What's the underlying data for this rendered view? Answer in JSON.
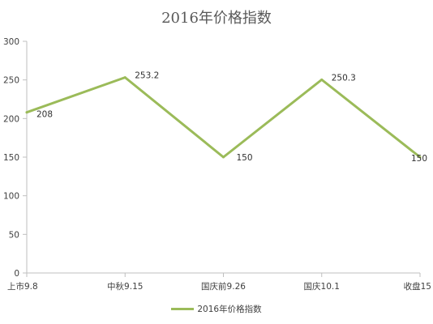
{
  "chart_data": {
    "type": "line",
    "title": "2016年价格指数",
    "categories": [
      "上市9.8",
      "中秋9.15",
      "国庆前9.26",
      "国庆10.1",
      "收盘15"
    ],
    "series": [
      {
        "name": "2016年价格指数",
        "values": [
          208,
          253.2,
          150,
          250.3,
          150
        ],
        "labels": [
          "208",
          "253.2",
          "150",
          "250.3",
          "150"
        ],
        "color": "#9BBB59"
      }
    ],
    "ylim": [
      0,
      300
    ],
    "yticks": [
      0,
      50,
      100,
      150,
      200,
      250,
      300
    ],
    "xlabel": "",
    "ylabel": "",
    "grid": false,
    "legend": "bottom"
  }
}
